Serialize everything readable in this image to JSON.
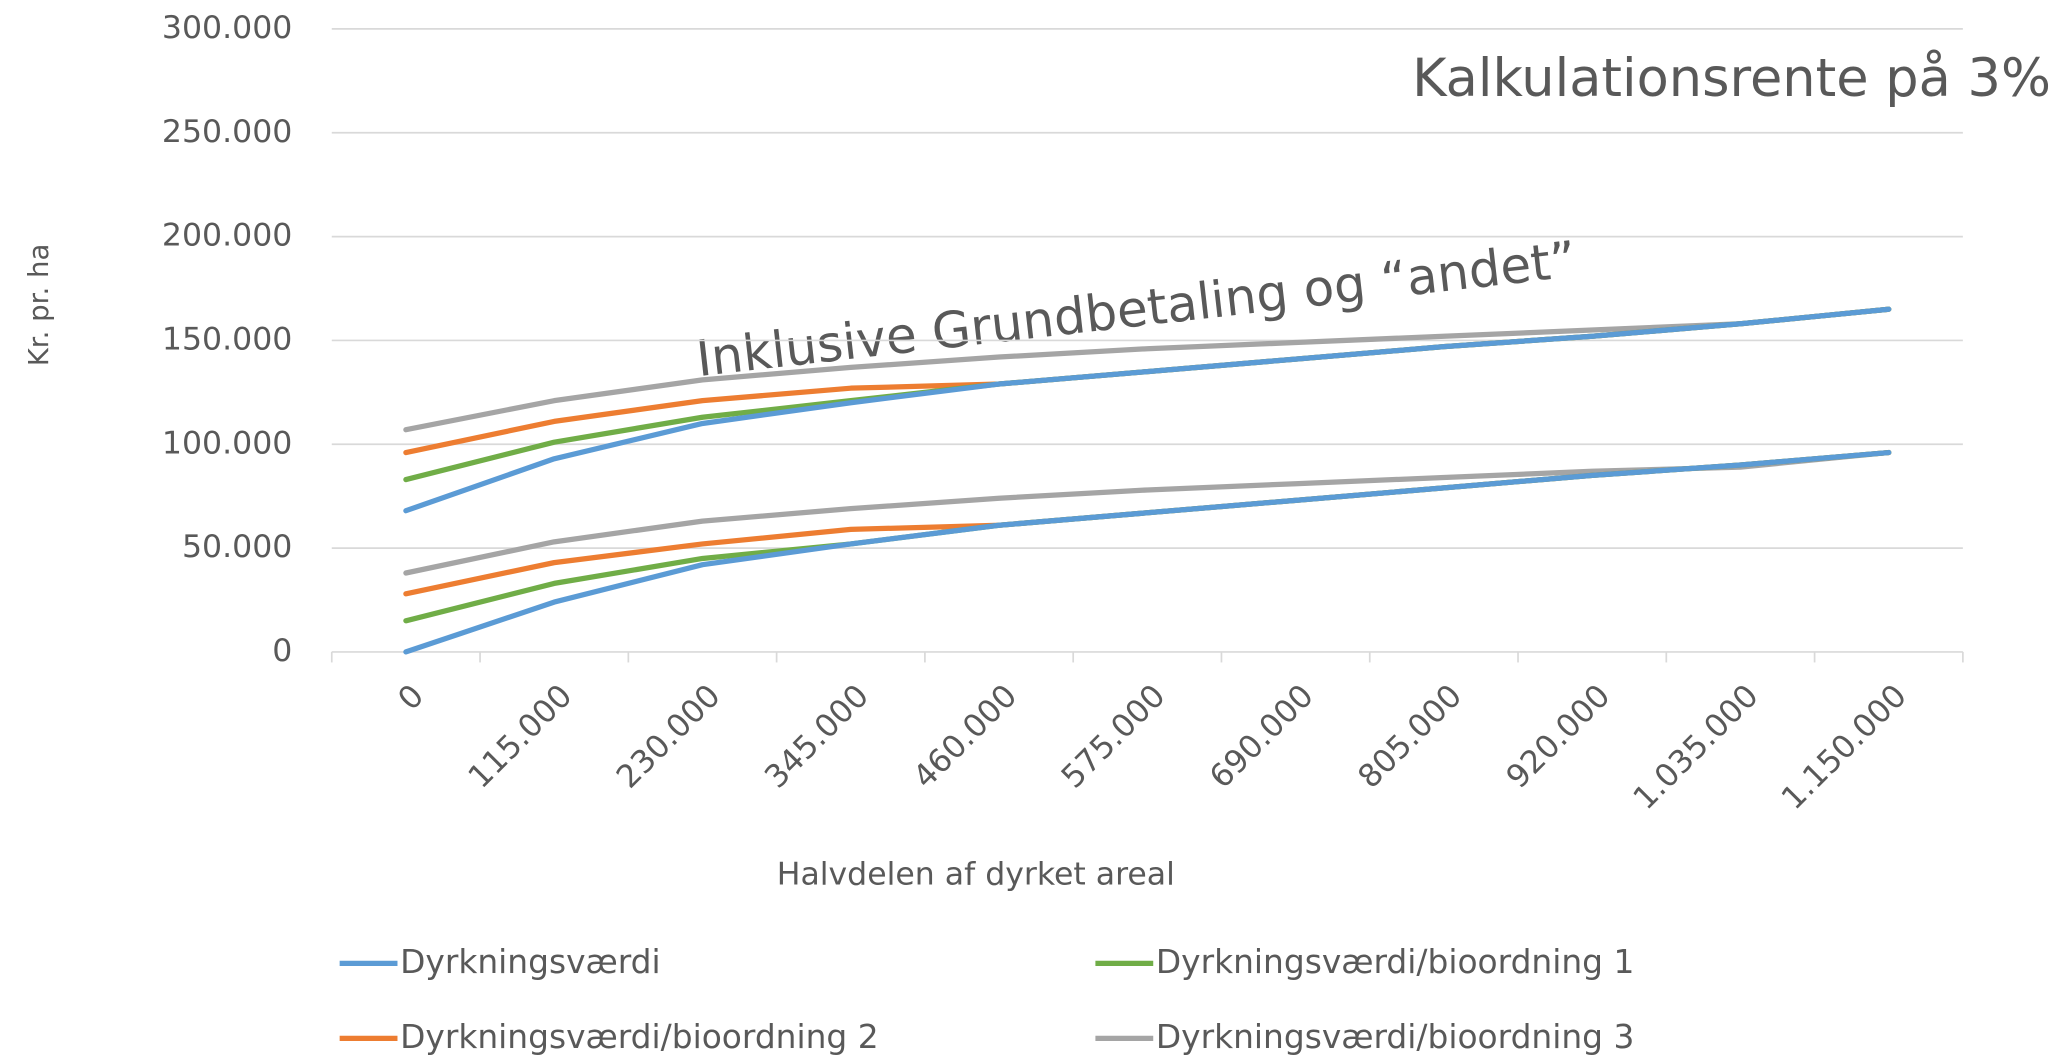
{
  "chart_data": {
    "type": "line",
    "annotations": [
      "Kalkulationsrente på 3%",
      "Inklusive Grundbetaling og “andet”"
    ],
    "x_label": "Halvdelen af dyrket areal",
    "y_label": "Kr. pr. ha",
    "categories": [
      "0",
      "115.000",
      "230.000",
      "345.000",
      "460.000",
      "575.000",
      "690.000",
      "805.000",
      "920.000",
      "1.035.000",
      "1.150.000"
    ],
    "ylim": [
      0,
      300000
    ],
    "yticks": [
      0,
      {
        "value": 50000,
        "label": "50.000"
      },
      {
        "value": 100000,
        "label": "100.000"
      },
      {
        "value": 150000,
        "label": "150.000"
      },
      {
        "value": 200000,
        "label": "200.000"
      },
      {
        "value": 250000,
        "label": "250.000"
      },
      {
        "value": 300000,
        "label": "300.000"
      }
    ],
    "grid": true,
    "series": [
      {
        "name": "Dyrkningsværdi",
        "color": "#5b9bd5",
        "values": [
          0,
          24000,
          42000,
          52000,
          61000,
          67000,
          73000,
          79000,
          85000,
          90000,
          96000
        ],
        "values_inklusive": [
          68000,
          93000,
          110000,
          120000,
          129000,
          135000,
          141000,
          147000,
          152000,
          158000,
          165000
        ]
      },
      {
        "name": "Dyrkningsværdi/bioordning 1",
        "color": "#70ad47",
        "values": [
          15000,
          33000,
          45000,
          52000,
          61000,
          67000,
          73000,
          79000,
          85000,
          90000,
          96000
        ],
        "values_inklusive": [
          83000,
          101000,
          113000,
          121000,
          129000,
          135000,
          141000,
          147000,
          152000,
          158000,
          165000
        ]
      },
      {
        "name": "Dyrkningsværdi/bioordning 2",
        "color": "#ed7d31",
        "values": [
          28000,
          43000,
          52000,
          59000,
          61000,
          67000,
          73000,
          79000,
          85000,
          90000,
          96000
        ],
        "values_inklusive": [
          96000,
          111000,
          121000,
          127000,
          129000,
          135000,
          141000,
          147000,
          152000,
          158000,
          165000
        ]
      },
      {
        "name": "Dyrkningsværdi/bioordning 3",
        "color": "#a5a5a5",
        "values": [
          38000,
          53000,
          63000,
          69000,
          74000,
          78000,
          81000,
          84000,
          87000,
          89000,
          96000
        ],
        "values_inklusive": [
          107000,
          121000,
          131000,
          137000,
          142000,
          146000,
          149000,
          152000,
          155000,
          158000,
          165000
        ]
      }
    ]
  }
}
